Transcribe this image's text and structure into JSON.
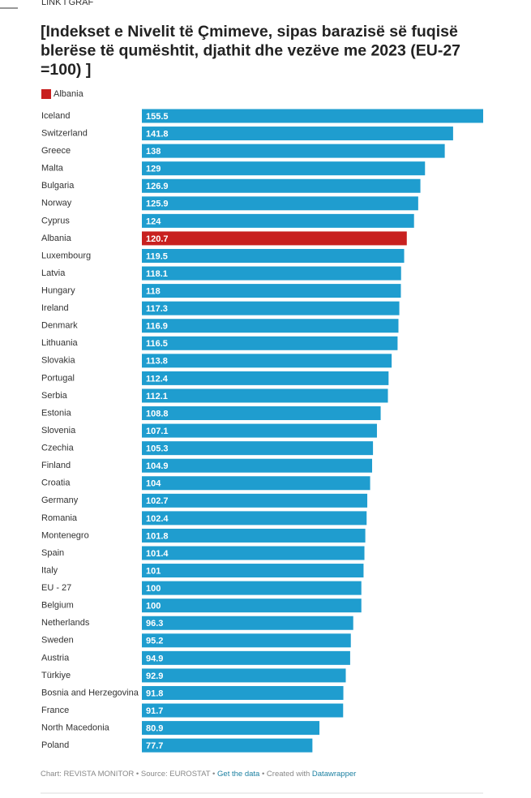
{
  "header": {
    "label": "LINK I GRAF"
  },
  "chart_data": {
    "type": "bar",
    "title": [
      "[Indekset e Nivelit të Çmimeve, sipas barazisë së fuqisë",
      "blerëse të qumështit, djathit dhe vezëve me 2023 (EU-27",
      "=100)  ]"
    ],
    "legend": [
      {
        "name": "Albania",
        "color": "#c8201f"
      }
    ],
    "color": "#1f9dcf",
    "xlim": [
      0,
      155.5
    ],
    "categories": [
      "Iceland",
      "Switzerland",
      "Greece",
      "Malta",
      "Bulgaria",
      "Norway",
      "Cyprus",
      "Albania",
      "Luxembourg",
      "Latvia",
      "Hungary",
      "Ireland",
      "Denmark",
      "Lithuania",
      "Slovakia",
      "Portugal",
      "Serbia",
      "Estonia",
      "Slovenia",
      "Czechia",
      "Finland",
      "Croatia",
      "Germany",
      "Romania",
      "Montenegro",
      "Spain",
      "Italy",
      "EU - 27",
      "Belgium",
      "Netherlands",
      "Sweden",
      "Austria",
      "Türkiye",
      "Bosnia and Herzegovina",
      "France",
      "North Macedonia",
      "Poland"
    ],
    "values": [
      155.5,
      141.8,
      138,
      129,
      126.9,
      125.9,
      124,
      120.7,
      119.5,
      118.1,
      118,
      117.3,
      116.9,
      116.5,
      113.8,
      112.4,
      112.1,
      108.8,
      107.1,
      105.3,
      104.9,
      104,
      102.7,
      102.4,
      101.8,
      101.4,
      101,
      100,
      100,
      96.3,
      95.2,
      94.9,
      92.9,
      91.8,
      91.7,
      80.9,
      77.7
    ]
  },
  "footer": {
    "chart": "Chart: REVISTA MONITOR",
    "source": "Source: EUROSTAT",
    "data_link": "Get the data",
    "created": "Created with",
    "tool": "Datawrapper"
  }
}
